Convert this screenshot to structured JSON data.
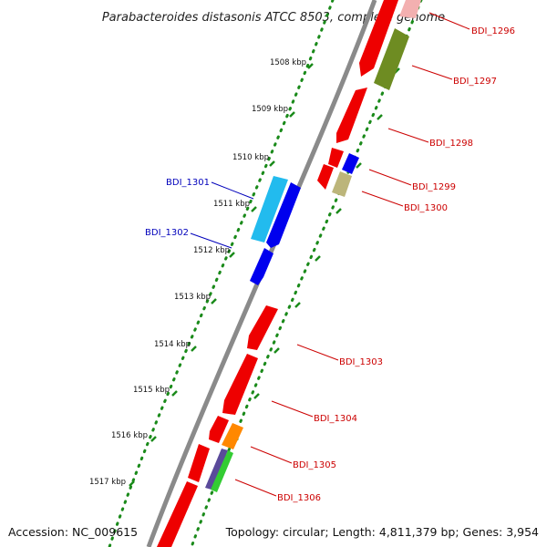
{
  "title": "Parabacteroides distasonis ATCC 8503, complete genome",
  "footer": {
    "accession": "Accession: NC_009615",
    "summary": "Topology: circular; Length: 4,811,379 bp; Genes: 3,954"
  },
  "colors": {
    "backbone": "#8c8c8c",
    "tick_ring": "#1a8a1a",
    "label_forward": "#cc0000",
    "label_reverse": "#0000bb"
  },
  "kbp_ticks": [
    {
      "label": "1508 kbp"
    },
    {
      "label": "1509 kbp"
    },
    {
      "label": "1510 kbp"
    },
    {
      "label": "1511 kbp"
    },
    {
      "label": "1512 kbp"
    },
    {
      "label": "1513 kbp"
    },
    {
      "label": "1514 kbp"
    },
    {
      "label": "1515 kbp"
    },
    {
      "label": "1516 kbp"
    },
    {
      "label": "1517 kbp"
    }
  ],
  "gene_labels": [
    {
      "text": "BDI_1296",
      "strand": "forward"
    },
    {
      "text": "BDI_1297",
      "strand": "forward"
    },
    {
      "text": "BDI_1298",
      "strand": "forward"
    },
    {
      "text": "BDI_1299",
      "strand": "forward"
    },
    {
      "text": "BDI_1300",
      "strand": "forward"
    },
    {
      "text": "BDI_1301",
      "strand": "reverse"
    },
    {
      "text": "BDI_1302",
      "strand": "reverse"
    },
    {
      "text": "BDI_1303",
      "strand": "forward"
    },
    {
      "text": "BDI_1304",
      "strand": "forward"
    },
    {
      "text": "BDI_1305",
      "strand": "forward"
    },
    {
      "text": "BDI_1306",
      "strand": "forward"
    }
  ]
}
